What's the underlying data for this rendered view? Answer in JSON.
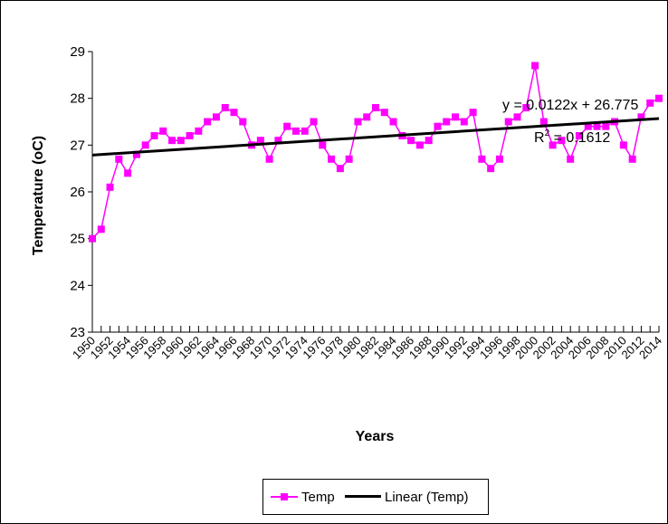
{
  "chart_data": {
    "type": "line",
    "title": "",
    "xlabel": "Years",
    "ylabel": "Temperature (oC)",
    "ylim": [
      23,
      29
    ],
    "yticks": [
      "23",
      "24",
      "25",
      "26",
      "27",
      "28",
      "29"
    ],
    "x": [
      1950,
      1951,
      1952,
      1953,
      1954,
      1955,
      1956,
      1957,
      1958,
      1959,
      1960,
      1961,
      1962,
      1963,
      1964,
      1965,
      1966,
      1967,
      1968,
      1969,
      1970,
      1971,
      1972,
      1973,
      1974,
      1975,
      1976,
      1977,
      1978,
      1979,
      1980,
      1981,
      1982,
      1983,
      1984,
      1985,
      1986,
      1987,
      1988,
      1989,
      1990,
      1991,
      1992,
      1993,
      1994,
      1995,
      1996,
      1997,
      1998,
      1999,
      2000,
      2001,
      2002,
      2003,
      2004,
      2005,
      2006,
      2007,
      2008,
      2009,
      2010,
      2011,
      2012,
      2013,
      2014
    ],
    "xtick_labels": [
      "1950",
      "1952",
      "1954",
      "1956",
      "1958",
      "1960",
      "1962",
      "1964",
      "1966",
      "1968",
      "1970",
      "1972",
      "1974",
      "1976",
      "1978",
      "1980",
      "1982",
      "1984",
      "1986",
      "1988",
      "1990",
      "1992",
      "1994",
      "1996",
      "1998",
      "2000",
      "2002",
      "2004",
      "2006",
      "2008",
      "2010",
      "2012",
      "2014"
    ],
    "series": [
      {
        "name": "Temp",
        "color": "#ff00ff",
        "marker": "square",
        "values": [
          25.0,
          25.2,
          26.1,
          26.7,
          26.4,
          26.8,
          27.0,
          27.2,
          27.3,
          27.1,
          27.1,
          27.2,
          27.3,
          27.5,
          27.6,
          27.8,
          27.7,
          27.5,
          27.0,
          27.1,
          26.7,
          27.1,
          27.4,
          27.3,
          27.3,
          27.5,
          27.0,
          26.7,
          26.5,
          26.7,
          27.5,
          27.6,
          27.8,
          27.7,
          27.5,
          27.2,
          27.1,
          27.0,
          27.1,
          27.4,
          27.5,
          27.6,
          27.5,
          27.7,
          26.7,
          26.5,
          26.7,
          27.5,
          27.6,
          27.8,
          28.7,
          27.5,
          27.0,
          27.1,
          26.7,
          27.2,
          27.4,
          27.4,
          27.4,
          27.5,
          27.0,
          26.7,
          27.6,
          27.9,
          28.0
        ]
      },
      {
        "name": "Linear (Temp)",
        "color": "#000000",
        "type": "trendline",
        "slope": 0.0122,
        "intercept": 26.775
      }
    ],
    "annotations": {
      "equation": "y = 0.0122x + 26.775",
      "r2_prefix": "R",
      "r2_sup": "2",
      "r2_value": " = 0.1612"
    },
    "legend": {
      "placement": "bottom",
      "entries": [
        "Temp",
        "Linear (Temp)"
      ]
    },
    "grid": false
  }
}
